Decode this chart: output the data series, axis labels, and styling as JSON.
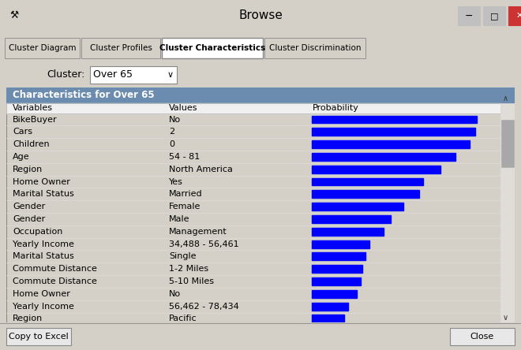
{
  "title": "Browse",
  "tab_labels": [
    "Cluster Diagram",
    "Cluster Profiles",
    "Cluster Characteristics",
    "Cluster Discrimination"
  ],
  "active_tab": 2,
  "cluster_label": "Cluster:",
  "cluster_value": "Over 65",
  "section_header": "Characteristics for Over 65",
  "col_headers": [
    "Variables",
    "Values",
    "Probability"
  ],
  "rows": [
    {
      "variable": "BikeBuyer",
      "value": "No",
      "prob": 0.92
    },
    {
      "variable": "Cars",
      "value": "2",
      "prob": 0.91
    },
    {
      "variable": "Children",
      "value": "0",
      "prob": 0.88
    },
    {
      "variable": "Age",
      "value": "54 - 81",
      "prob": 0.8
    },
    {
      "variable": "Region",
      "value": "North America",
      "prob": 0.72
    },
    {
      "variable": "Home Owner",
      "value": "Yes",
      "prob": 0.62
    },
    {
      "variable": "Marital Status",
      "value": "Married",
      "prob": 0.6
    },
    {
      "variable": "Gender",
      "value": "Female",
      "prob": 0.51
    },
    {
      "variable": "Gender",
      "value": "Male",
      "prob": 0.44
    },
    {
      "variable": "Occupation",
      "value": "Management",
      "prob": 0.4
    },
    {
      "variable": "Yearly Income",
      "value": "34,488 - 56,461",
      "prob": 0.32
    },
    {
      "variable": "Marital Status",
      "value": "Single",
      "prob": 0.3
    },
    {
      "variable": "Commute Distance",
      "value": "1-2 Miles",
      "prob": 0.28
    },
    {
      "variable": "Commute Distance",
      "value": "5-10 Miles",
      "prob": 0.27
    },
    {
      "variable": "Home Owner",
      "value": "No",
      "prob": 0.25
    },
    {
      "variable": "Yearly Income",
      "value": "56,462 - 78,434",
      "prob": 0.2
    },
    {
      "variable": "Region",
      "value": "Pacific",
      "prob": 0.18
    }
  ],
  "bg_color": "#d4d0c8",
  "header_bg": "#6b8cae",
  "bar_color": "#0000ff",
  "table_bg": "#ffffff",
  "tab_active_bg": "#ffffff",
  "tab_inactive_bg": "#d4d0c8",
  "button_bg": "#e8e8e8",
  "close_btn_color": "#cc3333",
  "scrollbar_color": "#c8c8c8"
}
